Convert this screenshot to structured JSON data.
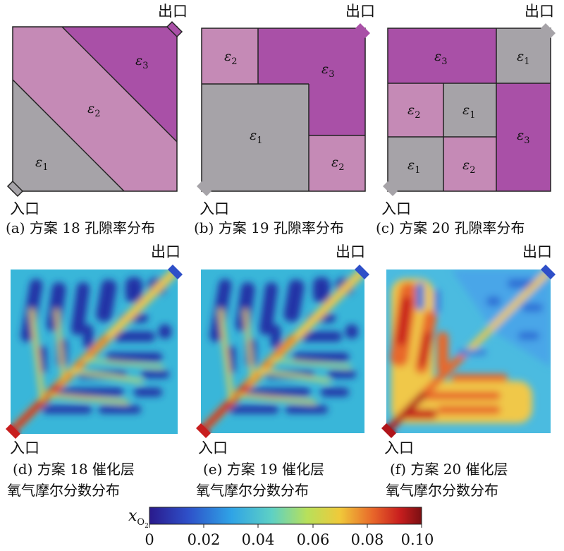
{
  "colors": {
    "grey": "#a6a3a8",
    "light_pink": "#c58ab6",
    "magenta": "#a950a7",
    "outline": "#222222"
  },
  "labels": {
    "inlet": "入口",
    "outlet": "出口"
  },
  "porosity": {
    "eps_symbol": "ε",
    "subs": [
      "1",
      "2",
      "3"
    ]
  },
  "captions": {
    "a": "(a) 方案 18 孔隙率分布",
    "b": "(b) 方案 19 孔隙率分布",
    "c": "(c) 方案 20 孔隙率分布",
    "d1": "(d) 方案 18 催化层",
    "d2": "氧气摩尔分数分布",
    "e1": "(e) 方案 19 催化层",
    "e2": "氧气摩尔分数分布",
    "f1": "(f) 方案 20 催化层",
    "f2": "氧气摩尔分数分布"
  },
  "colorbar": {
    "symbol": "x",
    "symbol_sub": "O",
    "symbol_subsub": "2",
    "ticks": [
      "0",
      "0.02",
      "0.04",
      "0.06",
      "0.08",
      "0.10"
    ],
    "colors": [
      "#2a1a8c",
      "#2e60d0",
      "#2fb4e8",
      "#7fdc8f",
      "#e9e04a",
      "#f08a24",
      "#c81e1e",
      "#7a0f12"
    ]
  },
  "heatmaps": {
    "d": {
      "background": "#39b6d9",
      "level": "low-mid"
    },
    "e": {
      "background": "#39b6d9",
      "level": "low-mid"
    },
    "f": {
      "background": "#4bbbe0",
      "level": "high"
    }
  }
}
